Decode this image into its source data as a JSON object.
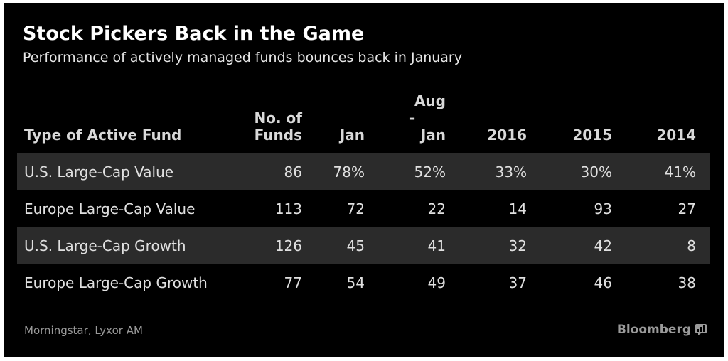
{
  "chart_data": {
    "type": "table",
    "title": "Stock Pickers Back in the Game",
    "subtitle": "Performance of actively managed funds bounces back in January",
    "columns": [
      "Type of Active Fund",
      "No. of Funds",
      "Jan",
      "Aug - Jan",
      "2016",
      "2015",
      "2014"
    ],
    "header_lines": [
      [
        "Type of Active Fund"
      ],
      [
        "No. of",
        "Funds"
      ],
      [
        "Jan"
      ],
      [
        "Aug",
        "-",
        "Jan"
      ],
      [
        "2016"
      ],
      [
        "2015"
      ],
      [
        "2014"
      ]
    ],
    "rows": [
      [
        "U.S. Large-Cap Value",
        "86",
        "78%",
        "52%",
        "33%",
        "30%",
        "41%"
      ],
      [
        "Europe Large-Cap Value",
        "113",
        "72",
        "22",
        "14",
        "93",
        "27"
      ],
      [
        "U.S. Large-Cap Growth",
        "126",
        "45",
        "41",
        "32",
        "42",
        "8"
      ],
      [
        "Europe Large-Cap Growth",
        "77",
        "54",
        "49",
        "37",
        "46",
        "38"
      ]
    ],
    "source": "Morningstar, Lyxor AM",
    "brand": "Bloomberg",
    "colors": {
      "background": "#000000",
      "row_shade": "#2b2b2b",
      "text": "#ffffff",
      "muted": "#9a9a9a"
    }
  }
}
